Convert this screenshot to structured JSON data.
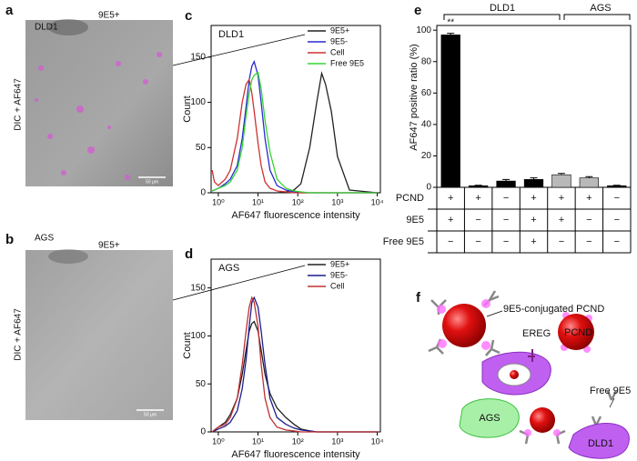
{
  "panel_letters": [
    "a",
    "b",
    "c",
    "d",
    "e",
    "f"
  ],
  "panel_a": {
    "cell": "DLD1",
    "sample": "9E5+",
    "channel": "DIC + AF647",
    "scale": "50 μm"
  },
  "panel_b": {
    "cell": "AGS",
    "sample": "9E5+",
    "channel": "DIC + AF647",
    "scale": "50 μm"
  },
  "chart_data": [
    {
      "type": "line",
      "title": "DLD1",
      "xlabel": "AF647 fluorescence intensity",
      "ylabel": "Count",
      "log_x": true,
      "legend": "upper right",
      "x": [
        0.7,
        0.8,
        1,
        1.5,
        2,
        3,
        4,
        5,
        6,
        7,
        8,
        10,
        12,
        15,
        20,
        30,
        50,
        80,
        120,
        200,
        300,
        400,
        500,
        700,
        1000,
        2000,
        10000
      ],
      "xlim": [
        0.66,
        12000
      ],
      "xticks": [
        {
          "value": 1,
          "label": "10⁰"
        },
        {
          "value": 10,
          "label": "10¹"
        },
        {
          "value": 100,
          "label": "10²"
        },
        {
          "value": 1000,
          "label": "10³"
        },
        {
          "value": 10000,
          "label": "10⁴"
        }
      ],
      "ylim": [
        0,
        185
      ],
      "yticks": [
        0,
        50,
        100,
        150
      ],
      "series": [
        {
          "name": "9E5+",
          "color": "#222222",
          "values": [
            0,
            0,
            0,
            0,
            0,
            0,
            0,
            0,
            0,
            0,
            0,
            0,
            0,
            0,
            0,
            0,
            1,
            3,
            10,
            50,
            100,
            132,
            120,
            90,
            40,
            3,
            0
          ]
        },
        {
          "name": "9E5-",
          "color": "#2a2ad0",
          "values": [
            2,
            3,
            5,
            10,
            15,
            30,
            60,
            95,
            125,
            140,
            145,
            130,
            100,
            60,
            25,
            8,
            3,
            1,
            0,
            0,
            0,
            0,
            0,
            0,
            0,
            0,
            0
          ]
        },
        {
          "name": "Cell",
          "color": "#d03030",
          "values": [
            25,
            12,
            8,
            15,
            25,
            60,
            100,
            120,
            125,
            110,
            90,
            55,
            30,
            12,
            5,
            2,
            1,
            0,
            0,
            0,
            0,
            0,
            0,
            0,
            0,
            0,
            0
          ]
        },
        {
          "name": "Free 9E5",
          "color": "#33d633",
          "values": [
            2,
            3,
            5,
            8,
            12,
            25,
            50,
            85,
            110,
            125,
            130,
            133,
            115,
            80,
            45,
            15,
            5,
            2,
            1,
            0,
            0,
            0,
            0,
            0,
            0,
            0,
            0
          ]
        }
      ]
    },
    {
      "type": "line",
      "title": "AGS",
      "xlabel": "AF647 fluorescence intensity",
      "ylabel": "Count",
      "log_x": true,
      "legend": "upper right",
      "x": [
        0.7,
        0.8,
        1,
        1.5,
        2,
        3,
        4,
        5,
        6,
        7,
        8,
        10,
        12,
        15,
        20,
        30,
        50,
        80,
        120,
        200,
        300,
        400,
        500,
        700,
        1000,
        2000,
        10000
      ],
      "xlim": [
        0.66,
        12000
      ],
      "xticks": [
        {
          "value": 1,
          "label": "10⁰"
        },
        {
          "value": 10,
          "label": "10¹"
        },
        {
          "value": 100,
          "label": "10²"
        },
        {
          "value": 1000,
          "label": "10³"
        },
        {
          "value": 10000,
          "label": "10⁴"
        }
      ],
      "ylim": [
        0,
        180
      ],
      "yticks": [
        0,
        50,
        100,
        150
      ],
      "series": [
        {
          "name": "9E5+",
          "color": "#222222",
          "values": [
            0,
            2,
            5,
            10,
            18,
            35,
            60,
            85,
            105,
            113,
            115,
            105,
            85,
            60,
            40,
            25,
            15,
            8,
            3,
            1,
            0,
            0,
            0,
            0,
            0,
            0,
            0
          ]
        },
        {
          "name": "9E5-",
          "color": "#1c1c8c",
          "values": [
            0,
            1,
            3,
            6,
            10,
            22,
            45,
            75,
            110,
            135,
            140,
            130,
            105,
            70,
            35,
            15,
            8,
            4,
            2,
            1,
            0,
            0,
            0,
            0,
            0,
            0,
            0
          ]
        },
        {
          "name": "Cell",
          "color": "#c03030",
          "values": [
            0,
            2,
            5,
            8,
            15,
            35,
            70,
            105,
            130,
            140,
            135,
            110,
            70,
            35,
            15,
            5,
            2,
            1,
            0,
            0,
            0,
            0,
            0,
            0,
            0,
            0,
            0
          ]
        }
      ]
    },
    {
      "type": "bar",
      "ylabel": "AF647 positive ratio (%)",
      "groups": [
        "DLD1",
        "AGS"
      ],
      "annotation": "**",
      "values": [
        97,
        1,
        4,
        5,
        8,
        6,
        1
      ],
      "errors": [
        1,
        0.3,
        1,
        1,
        0.8,
        0.8,
        0.3
      ],
      "colors": [
        "#000000",
        "#000000",
        "#000000",
        "#000000",
        "#b8b8b8",
        "#b8b8b8",
        "#000000"
      ],
      "ylim": [
        0,
        103
      ],
      "yticks": [
        0,
        20,
        40,
        60,
        80,
        100
      ],
      "table": {
        "rows": [
          {
            "name": "PCND",
            "cells": [
              "+",
              "+",
              "−",
              "+",
              "+",
              "+",
              "−"
            ]
          },
          {
            "name": "9E5",
            "cells": [
              "+",
              "−",
              "−",
              "+",
              "+",
              "−",
              "−"
            ]
          },
          {
            "name": "Free 9E5",
            "cells": [
              "−",
              "−",
              "−",
              "+",
              "−",
              "−",
              "−"
            ]
          }
        ]
      }
    }
  ],
  "diagram": {
    "conjugate": "9E5-conjugated PCND",
    "receptor": "EREG",
    "particle": "PCND",
    "cell_negative": "AGS",
    "free_antibody": "Free 9E5",
    "cell_positive": "DLD1"
  }
}
